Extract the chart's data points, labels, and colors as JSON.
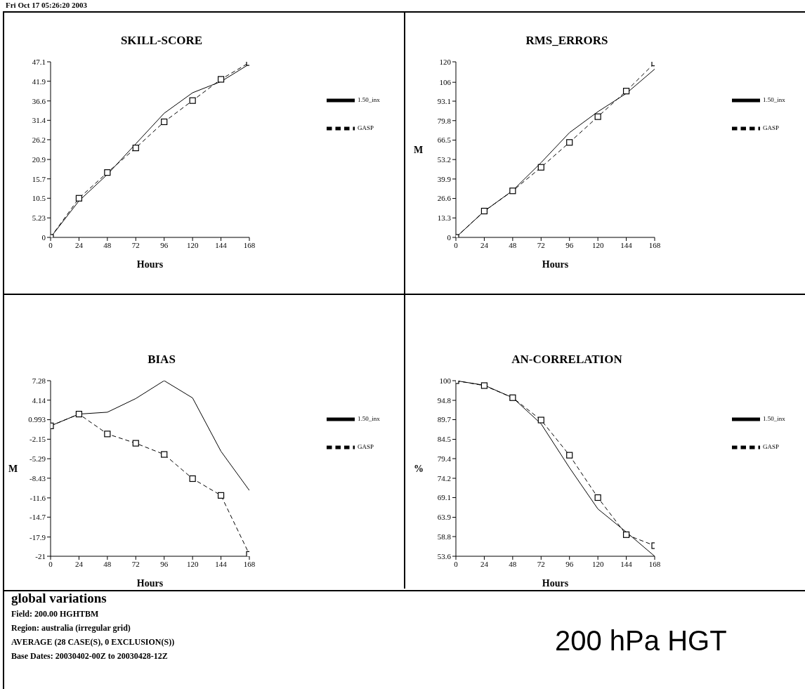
{
  "chart_data": [
    {
      "type": "line",
      "title": "SKILL-SCORE",
      "xlabel": "Hours",
      "annotations": [
        "Fri Oct 17 05:26:20 2003"
      ],
      "x": [
        0,
        24,
        48,
        72,
        96,
        120,
        144,
        168
      ],
      "xlim": [
        0,
        168
      ],
      "xticks": [
        0,
        24,
        48,
        72,
        96,
        120,
        144,
        168
      ],
      "ylim": [
        0,
        47.1
      ],
      "yticks": [
        0,
        5.23,
        10.5,
        15.7,
        20.9,
        26.2,
        31.4,
        36.6,
        41.9,
        47.1
      ],
      "grid": false,
      "legend": "right",
      "series": [
        {
          "name": "1.50_inx",
          "color": "#000000",
          "marker": "none",
          "line_style": "solid",
          "values": [
            0,
            9.8,
            16.9,
            25.1,
            33.3,
            38.8,
            41.8,
            46.5
          ]
        },
        {
          "name": "GASP",
          "color": "#000000",
          "marker": "square",
          "line_style": "dashed",
          "values": [
            0,
            10.5,
            17.4,
            24.0,
            31.0,
            36.7,
            42.4,
            46.9
          ]
        }
      ]
    },
    {
      "type": "line",
      "title": "RMS_ERRORS",
      "xlabel": "Hours",
      "ylabel": "M",
      "x": [
        0,
        24,
        48,
        72,
        96,
        120,
        144,
        168
      ],
      "xlim": [
        0,
        168
      ],
      "xticks": [
        0,
        24,
        48,
        72,
        96,
        120,
        144,
        168
      ],
      "ylim": [
        0,
        120
      ],
      "yticks": [
        0,
        13.3,
        26.6,
        39.9,
        53.2,
        66.5,
        79.8,
        93.1,
        106,
        120
      ],
      "grid": false,
      "legend": "right",
      "series": [
        {
          "name": "1.50_inx",
          "color": "#000000",
          "marker": "none",
          "line_style": "solid",
          "values": [
            0,
            17.9,
            32.0,
            51.1,
            71.6,
            85.9,
            98.4,
            115
          ]
        },
        {
          "name": "GASP",
          "color": "#000000",
          "marker": "square",
          "line_style": "dashed",
          "values": [
            0,
            18.0,
            31.8,
            47.9,
            64.9,
            82.5,
            100,
            119.2
          ]
        }
      ]
    },
    {
      "type": "line",
      "title": "BIAS",
      "xlabel": "Hours",
      "ylabel": "M",
      "annotations": [
        "global variations",
        "Field: 200.00 HGHTBM",
        "Region: australia (irregular grid)",
        "AVERAGE (28 CASE(S), 0 EXCLUSION(S))",
        "Base Dates: 20030402-00Z to 20030428-12Z"
      ],
      "x": [
        0,
        24,
        48,
        72,
        96,
        120,
        144,
        168
      ],
      "xlim": [
        0,
        168
      ],
      "xticks": [
        0,
        24,
        48,
        72,
        96,
        120,
        144,
        168
      ],
      "ylim": [
        -21,
        7.28
      ],
      "yticks": [
        -21,
        -17.9,
        -14.7,
        -11.6,
        -8.43,
        -5.29,
        -2.15,
        0.993,
        4.14,
        7.28
      ],
      "grid": false,
      "legend": "right",
      "series": [
        {
          "name": "1.50_inx",
          "color": "#000000",
          "marker": "none",
          "line_style": "solid",
          "values": [
            0.0,
            1.9,
            2.2,
            4.4,
            7.28,
            4.5,
            -4.1,
            -10.4
          ]
        },
        {
          "name": "GASP",
          "color": "#000000",
          "marker": "square",
          "line_style": "dashed",
          "values": [
            0.0,
            1.9,
            -1.3,
            -2.8,
            -4.6,
            -8.5,
            -11.2,
            -20.7
          ]
        }
      ]
    },
    {
      "type": "line",
      "title": "AN-CORRELATION",
      "xlabel": "Hours",
      "ylabel": "%",
      "annotations": [
        "200 hPa HGT"
      ],
      "x": [
        0,
        24,
        48,
        72,
        96,
        120,
        144,
        168
      ],
      "xlim": [
        0,
        168
      ],
      "xticks": [
        0,
        24,
        48,
        72,
        96,
        120,
        144,
        168
      ],
      "ylim": [
        53.6,
        100
      ],
      "yticks": [
        53.6,
        58.8,
        63.9,
        69.1,
        74.2,
        79.4,
        84.5,
        89.7,
        94.8,
        100
      ],
      "grid": false,
      "legend": "right",
      "series": [
        {
          "name": "1.50_inx",
          "color": "#000000",
          "marker": "none",
          "line_style": "solid",
          "values": [
            100,
            98.8,
            95.5,
            88.6,
            77.0,
            66.1,
            60.0,
            53.6
          ]
        },
        {
          "name": "GASP",
          "color": "#000000",
          "marker": "square",
          "line_style": "dashed",
          "values": [
            100,
            98.7,
            95.5,
            89.6,
            80.3,
            69.1,
            59.3,
            56.4
          ]
        }
      ]
    }
  ]
}
